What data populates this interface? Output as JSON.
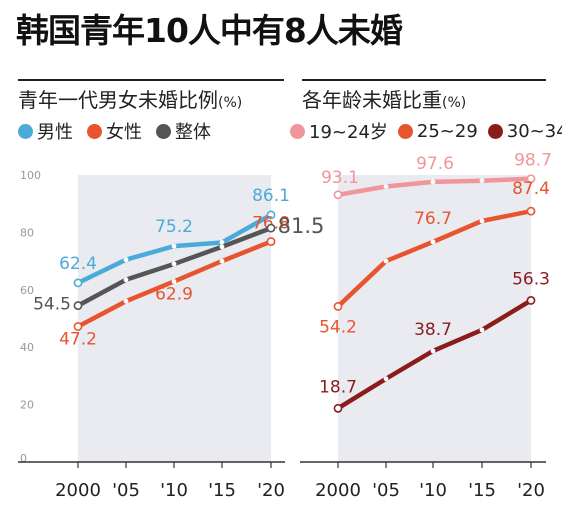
{
  "title": "韩国青年10人中有8人未婚",
  "chart_data": [
    {
      "type": "line",
      "title": "青年一代男女未婚比例",
      "unit": "(%)",
      "x": [
        "2000",
        "'05",
        "'10",
        "'15",
        "'20"
      ],
      "ylim": [
        0,
        100
      ],
      "yticks": [
        "0",
        "20",
        "40",
        "60",
        "80",
        "100"
      ],
      "series": [
        {
          "name": "男性",
          "color": "#4aabd9",
          "values": [
            62.4,
            70.5,
            75.2,
            76.5,
            86.1
          ],
          "labels": [
            "62.4",
            "",
            "75.2",
            "",
            "86.1"
          ]
        },
        {
          "name": "女性",
          "color": "#e8542e",
          "values": [
            47.2,
            56.0,
            62.9,
            70.0,
            76.8
          ],
          "labels": [
            "47.2",
            "",
            "62.9",
            "",
            "76.8"
          ]
        },
        {
          "name": "整体",
          "color": "#555555",
          "values": [
            54.5,
            63.5,
            69.0,
            75.0,
            81.5
          ],
          "labels": [
            "54.5",
            "",
            "",
            "",
            "81.5"
          ]
        }
      ]
    },
    {
      "type": "line",
      "title": "各年龄未婚比重",
      "unit": "(%)",
      "x": [
        "2000",
        "'05",
        "'10",
        "'15",
        "'20"
      ],
      "ylim": [
        0,
        100
      ],
      "series": [
        {
          "name": "19~24岁",
          "color": "#f0959a",
          "values": [
            93.1,
            96.0,
            97.6,
            98.0,
            98.7
          ],
          "labels": [
            "93.1",
            "",
            "97.6",
            "",
            "98.7"
          ]
        },
        {
          "name": "25~29",
          "color": "#e8542e",
          "values": [
            54.2,
            70.0,
            76.7,
            84.0,
            87.4
          ],
          "labels": [
            "54.2",
            "",
            "76.7",
            "",
            "87.4"
          ]
        },
        {
          "name": "30~34",
          "color": "#8b1c1c",
          "values": [
            18.7,
            29.0,
            38.7,
            46.0,
            56.3
          ],
          "labels": [
            "18.7",
            "",
            "38.7",
            "",
            "56.3"
          ]
        }
      ]
    }
  ]
}
